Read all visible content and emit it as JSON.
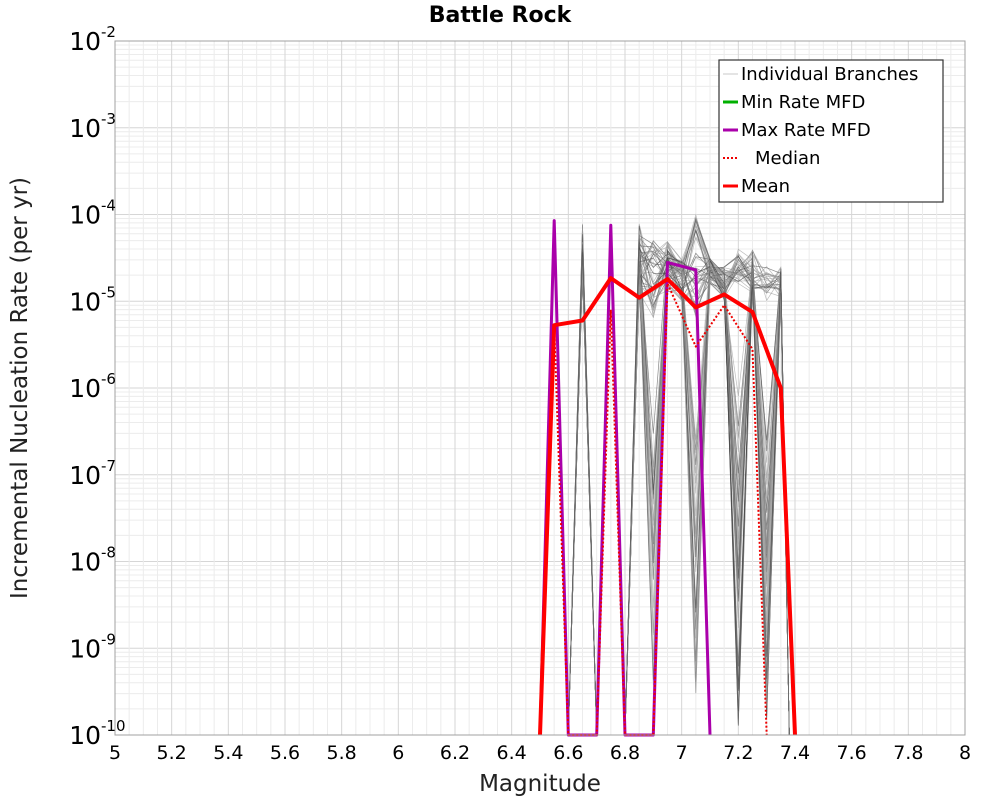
{
  "chart_data": {
    "type": "line",
    "title": "Battle Rock",
    "xlabel": "Magnitude",
    "ylabel": "Incremental Nucleation Rate (per yr)",
    "xlim": [
      5,
      8
    ],
    "ylim": [
      1e-10,
      0.01
    ],
    "yscale": "log",
    "grid": true,
    "legend_position": "top-right",
    "x_ticks": [
      "5",
      "5.2",
      "5.4",
      "5.6",
      "5.8",
      "6",
      "6.2",
      "6.4",
      "6.6",
      "6.8",
      "7",
      "7.2",
      "7.4",
      "7.6",
      "7.8",
      "8"
    ],
    "y_ticks": [
      {
        "base": "10",
        "exp": "-10"
      },
      {
        "base": "10",
        "exp": "-9"
      },
      {
        "base": "10",
        "exp": "-8"
      },
      {
        "base": "10",
        "exp": "-7"
      },
      {
        "base": "10",
        "exp": "-6"
      },
      {
        "base": "10",
        "exp": "-5"
      },
      {
        "base": "10",
        "exp": "-4"
      },
      {
        "base": "10",
        "exp": "-3"
      },
      {
        "base": "10",
        "exp": "-2"
      }
    ],
    "legend": [
      {
        "label": "Individual Branches",
        "color": "#c8c8c8",
        "style": "thin"
      },
      {
        "label": "Min Rate MFD",
        "color": "#00b000",
        "style": "solid"
      },
      {
        "label": "Max Rate MFD",
        "color": "#aa00aa",
        "style": "solid"
      },
      {
        "label": "Median",
        "color": "#ee0000",
        "style": "dotted"
      },
      {
        "label": "Mean",
        "color": "#ff0000",
        "style": "bold"
      }
    ],
    "series": [
      {
        "name": "Mean",
        "color": "#ff0000",
        "style": "bold",
        "points": [
          [
            6.5,
            1e-10
          ],
          [
            6.55,
            5.3e-06
          ],
          [
            6.65,
            6e-06
          ],
          [
            6.75,
            1.85e-05
          ],
          [
            6.85,
            1.1e-05
          ],
          [
            6.95,
            1.8e-05
          ],
          [
            7.05,
            8.5e-06
          ],
          [
            7.15,
            1.2e-05
          ],
          [
            7.25,
            7.5e-06
          ],
          [
            7.35,
            1e-06
          ],
          [
            7.4,
            1e-10
          ]
        ]
      },
      {
        "name": "Median",
        "color": "#ee0000",
        "style": "dotted",
        "points": [
          [
            6.5,
            1e-10
          ],
          [
            6.55,
            5.3e-06
          ],
          [
            6.6,
            1e-10
          ],
          [
            6.7,
            1e-10
          ],
          [
            6.75,
            8e-06
          ],
          [
            6.8,
            1e-10
          ],
          [
            6.9,
            1e-10
          ],
          [
            6.95,
            1.6e-05
          ],
          [
            7.05,
            3e-06
          ],
          [
            7.15,
            9e-06
          ],
          [
            7.25,
            2.8e-06
          ],
          [
            7.3,
            1e-10
          ]
        ]
      },
      {
        "name": "Max Rate MFD",
        "color": "#aa00aa",
        "style": "solid",
        "points": [
          [
            6.5,
            1e-10
          ],
          [
            6.55,
            8.5e-05
          ],
          [
            6.6,
            1e-10
          ],
          [
            6.7,
            1e-10
          ],
          [
            6.75,
            7.5e-05
          ],
          [
            6.8,
            1e-10
          ],
          [
            6.9,
            1e-10
          ],
          [
            6.95,
            2.8e-05
          ],
          [
            7.05,
            2.3e-05
          ],
          [
            7.1,
            1e-10
          ]
        ]
      }
    ]
  }
}
